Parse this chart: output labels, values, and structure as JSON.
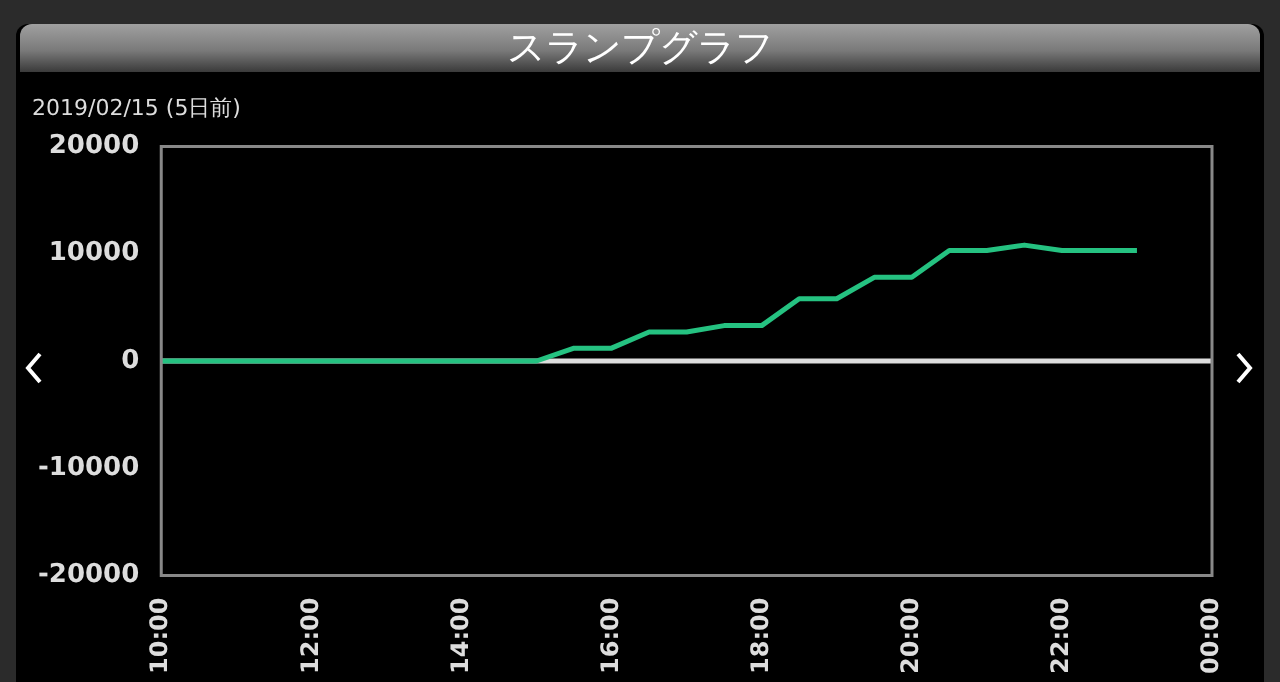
{
  "chart_data": {
    "type": "line",
    "title": "スランプグラフ",
    "subtitle": "2019/02/15 (5日前)",
    "x": [
      10,
      15,
      15.5,
      16,
      16.5,
      17,
      17.5,
      18,
      18.5,
      19,
      19.5,
      20,
      20.5,
      21,
      21.5,
      22,
      23
    ],
    "series": [
      {
        "color": "#25c281",
        "values": [
          0,
          0,
          1200,
          1200,
          2700,
          2700,
          3300,
          3300,
          5800,
          5800,
          7800,
          7800,
          10300,
          10300,
          10800,
          10300,
          10300
        ]
      }
    ],
    "xlim": [
      10,
      24
    ],
    "xticks": [
      {
        "value": 10,
        "label": "10:00"
      },
      {
        "value": 12,
        "label": "12:00"
      },
      {
        "value": 14,
        "label": "14:00"
      },
      {
        "value": 16,
        "label": "16:00"
      },
      {
        "value": 18,
        "label": "18:00"
      },
      {
        "value": 20,
        "label": "20:00"
      },
      {
        "value": 22,
        "label": "22:00"
      },
      {
        "value": 24,
        "label": "00:00"
      }
    ],
    "ylim": [
      -20000,
      20000
    ],
    "yticks": [
      -20000,
      -10000,
      0,
      10000,
      20000
    ],
    "ref_lines": [
      {
        "axis": "y",
        "value": 0,
        "color": "#dddddd"
      }
    ],
    "grid": false,
    "legend": false,
    "marker": "none",
    "line_style": "solid"
  }
}
